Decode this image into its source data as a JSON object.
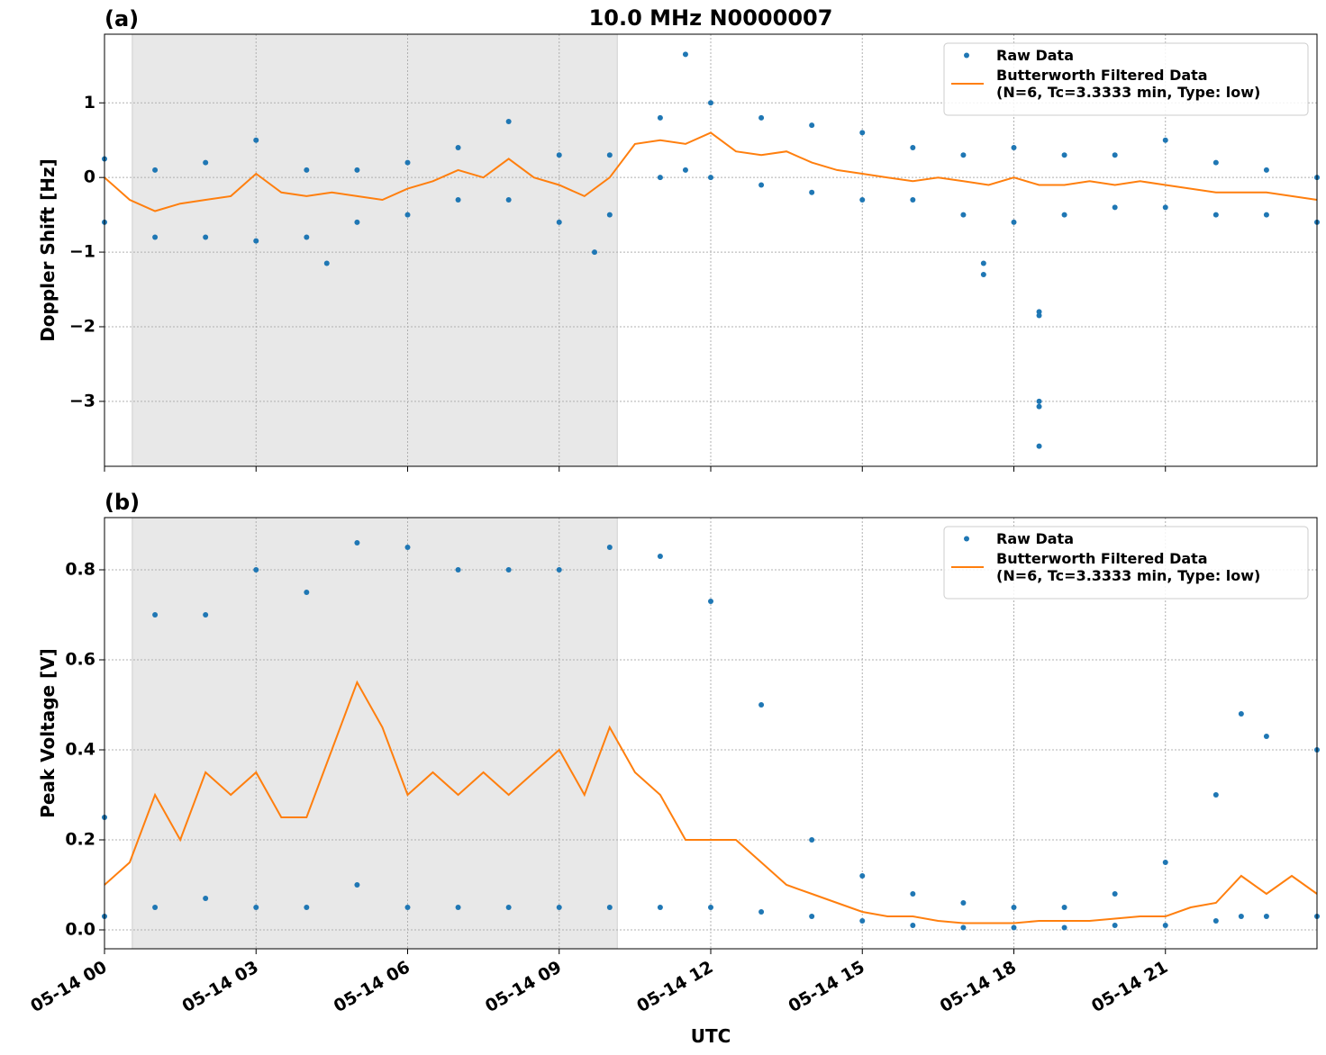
{
  "chart_data": [
    {
      "type": "line",
      "title": "10.0 MHz N0000007",
      "panel_label": "(a)",
      "y_label": "Doppler Shift [Hz]",
      "xlim": [
        0,
        24
      ],
      "xticks": [
        0,
        3,
        6,
        9,
        12,
        15,
        18,
        21
      ],
      "ylim": [
        -3.87,
        1.92
      ],
      "yticks": [
        {
          "value": -3,
          "label": "−3"
        },
        {
          "value": -2,
          "label": "−2"
        },
        {
          "value": -1,
          "label": "−1"
        },
        0,
        1
      ],
      "grid": true,
      "legend": "upper right",
      "shaded_span": [
        0.55,
        10.15
      ],
      "series": [
        {
          "name": "Raw Data",
          "style": "points",
          "color": "#1f77b4",
          "x": [
            0,
            0,
            1,
            1,
            2,
            2,
            3,
            3,
            4,
            4,
            5,
            5,
            6,
            6,
            7,
            7,
            8,
            8,
            9,
            9,
            10,
            10,
            11,
            11,
            11.5,
            11.5,
            12,
            12,
            13,
            13,
            14,
            14,
            15,
            15,
            16,
            16,
            17,
            17,
            18,
            18,
            19,
            19,
            20,
            20,
            21,
            21,
            22,
            22,
            23,
            23,
            24,
            24,
            4.4,
            9.7,
            17.4,
            17.4,
            18.5,
            18.5,
            18.5,
            18.5,
            18.5
          ],
          "values": [
            0.25,
            -0.6,
            0.1,
            -0.8,
            0.2,
            -0.8,
            0.5,
            -0.85,
            0.1,
            -0.8,
            0.1,
            -0.6,
            0.2,
            -0.5,
            0.4,
            -0.3,
            0.75,
            -0.3,
            0.3,
            -0.6,
            0.3,
            -0.5,
            0.8,
            0.0,
            1.65,
            0.1,
            1.0,
            0.0,
            0.8,
            -0.1,
            0.7,
            -0.2,
            0.6,
            -0.3,
            0.4,
            -0.3,
            0.3,
            -0.5,
            0.4,
            -0.6,
            0.3,
            -0.5,
            0.3,
            -0.4,
            0.5,
            -0.4,
            0.2,
            -0.5,
            0.1,
            -0.5,
            0.0,
            -0.6,
            -1.15,
            -1.0,
            -1.3,
            -1.15,
            -1.8,
            -1.85,
            -3.0,
            -3.07,
            -3.6
          ]
        },
        {
          "name": "Butterworth Filtered Data\n(N=6, Tc=3.3333 min, Type: low)",
          "style": "line",
          "color": "#ff7f0e",
          "x": [
            0,
            0.5,
            1,
            1.5,
            2,
            2.5,
            3,
            3.5,
            4,
            4.5,
            5,
            5.5,
            6,
            6.5,
            7,
            7.5,
            8,
            8.5,
            9,
            9.5,
            10,
            10.5,
            11,
            11.5,
            12,
            12.5,
            13,
            13.5,
            14,
            14.5,
            15,
            15.5,
            16,
            16.5,
            17,
            17.5,
            18,
            18.5,
            19,
            19.5,
            20,
            20.5,
            21,
            21.5,
            22,
            22.5,
            23,
            23.5,
            24
          ],
          "values": [
            0.0,
            -0.3,
            -0.45,
            -0.35,
            -0.3,
            -0.25,
            0.05,
            -0.2,
            -0.25,
            -0.2,
            -0.25,
            -0.3,
            -0.15,
            -0.05,
            0.1,
            0.0,
            0.25,
            0.0,
            -0.1,
            -0.25,
            0.0,
            0.45,
            0.5,
            0.45,
            0.6,
            0.35,
            0.3,
            0.35,
            0.2,
            0.1,
            0.05,
            0.0,
            -0.05,
            0.0,
            -0.05,
            -0.1,
            0.0,
            -0.1,
            -0.1,
            -0.05,
            -0.1,
            -0.05,
            -0.1,
            -0.15,
            -0.2,
            -0.2,
            -0.2,
            -0.25,
            -0.3
          ]
        }
      ]
    },
    {
      "type": "line",
      "panel_label": "(b)",
      "y_label": "Peak Voltage [V]",
      "x_label": "UTC",
      "xlim": [
        0,
        24
      ],
      "xticks": [
        {
          "value": 0,
          "label": "05-14 00"
        },
        {
          "value": 3,
          "label": "05-14 03"
        },
        {
          "value": 6,
          "label": "05-14 06"
        },
        {
          "value": 9,
          "label": "05-14 09"
        },
        {
          "value": 12,
          "label": "05-14 12"
        },
        {
          "value": 15,
          "label": "05-14 15"
        },
        {
          "value": 18,
          "label": "05-14 18"
        },
        {
          "value": 21,
          "label": "05-14 21"
        }
      ],
      "ylim": [
        -0.042,
        0.916
      ],
      "yticks": [
        {
          "value": 0,
          "label": "0.0"
        },
        0.2,
        0.4,
        0.6,
        0.8
      ],
      "grid": true,
      "legend": "upper right",
      "shaded_span": [
        0.55,
        10.15
      ],
      "series": [
        {
          "name": "Raw Data",
          "style": "points",
          "color": "#1f77b4",
          "x": [
            0,
            0,
            1,
            1,
            2,
            2,
            3,
            3,
            4,
            4,
            5,
            5,
            6,
            6,
            7,
            7,
            8,
            8,
            9,
            9,
            10,
            10,
            11,
            11,
            12,
            12,
            13,
            13,
            14,
            14,
            15,
            15,
            16,
            16,
            17,
            17,
            18,
            18,
            19,
            19,
            20,
            20,
            21,
            21,
            22,
            22,
            22.5,
            22.5,
            23,
            23,
            24,
            24
          ],
          "values": [
            0.25,
            0.03,
            0.7,
            0.05,
            0.7,
            0.07,
            0.8,
            0.05,
            0.75,
            0.05,
            0.86,
            0.1,
            0.85,
            0.05,
            0.8,
            0.05,
            0.8,
            0.05,
            0.8,
            0.05,
            0.85,
            0.05,
            0.83,
            0.05,
            0.73,
            0.05,
            0.5,
            0.04,
            0.2,
            0.03,
            0.12,
            0.02,
            0.08,
            0.01,
            0.06,
            0.005,
            0.05,
            0.005,
            0.05,
            0.005,
            0.08,
            0.01,
            0.15,
            0.01,
            0.3,
            0.02,
            0.48,
            0.03,
            0.43,
            0.03,
            0.4,
            0.03
          ]
        },
        {
          "name": "Butterworth Filtered Data\n(N=6, Tc=3.3333 min, Type: low)",
          "style": "line",
          "color": "#ff7f0e",
          "x": [
            0,
            0.5,
            1,
            1.5,
            2,
            2.5,
            3,
            3.5,
            4,
            4.5,
            5,
            5.5,
            6,
            6.5,
            7,
            7.5,
            8,
            8.5,
            9,
            9.5,
            10,
            10.5,
            11,
            11.5,
            12,
            12.5,
            13,
            13.5,
            14,
            14.5,
            15,
            15.5,
            16,
            16.5,
            17,
            17.5,
            18,
            18.5,
            19,
            19.5,
            20,
            20.5,
            21,
            21.5,
            22,
            22.5,
            23,
            23.5,
            24
          ],
          "values": [
            0.1,
            0.15,
            0.3,
            0.2,
            0.35,
            0.3,
            0.35,
            0.25,
            0.25,
            0.4,
            0.55,
            0.45,
            0.3,
            0.35,
            0.3,
            0.35,
            0.3,
            0.35,
            0.4,
            0.3,
            0.45,
            0.35,
            0.3,
            0.2,
            0.2,
            0.2,
            0.15,
            0.1,
            0.08,
            0.06,
            0.04,
            0.03,
            0.03,
            0.02,
            0.015,
            0.015,
            0.015,
            0.02,
            0.02,
            0.02,
            0.025,
            0.03,
            0.03,
            0.05,
            0.06,
            0.12,
            0.08,
            0.12,
            0.08
          ]
        }
      ]
    }
  ]
}
